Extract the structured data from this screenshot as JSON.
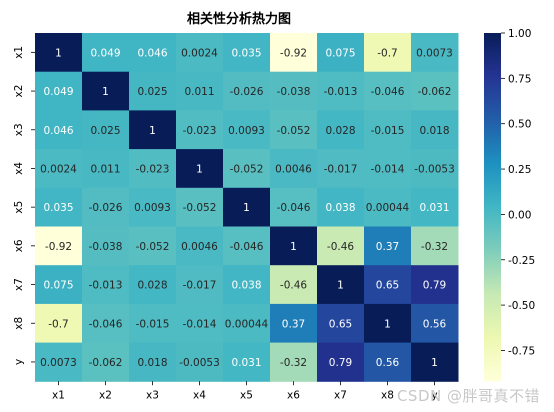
{
  "chart_data": {
    "type": "heatmap",
    "title": "相关性分析热力图",
    "categories": [
      "x1",
      "x2",
      "x3",
      "x4",
      "x5",
      "x6",
      "x7",
      "x8",
      "y"
    ],
    "matrix": [
      [
        1,
        0.049,
        0.046,
        0.0024,
        0.035,
        -0.92,
        0.075,
        -0.7,
        0.0073
      ],
      [
        0.049,
        1,
        0.025,
        0.011,
        -0.026,
        -0.038,
        -0.013,
        -0.046,
        -0.062
      ],
      [
        0.046,
        0.025,
        1,
        -0.023,
        0.0093,
        -0.052,
        0.028,
        -0.015,
        0.018
      ],
      [
        0.0024,
        0.011,
        -0.023,
        1,
        -0.052,
        0.0046,
        -0.017,
        -0.014,
        -0.0053
      ],
      [
        0.035,
        -0.026,
        0.0093,
        -0.052,
        1,
        -0.046,
        0.038,
        0.00044,
        0.031
      ],
      [
        -0.92,
        -0.038,
        -0.052,
        0.0046,
        -0.046,
        1,
        -0.46,
        0.37,
        -0.32
      ],
      [
        0.075,
        -0.013,
        0.028,
        -0.017,
        0.038,
        -0.46,
        1,
        0.65,
        0.79
      ],
      [
        -0.7,
        -0.046,
        -0.015,
        -0.014,
        0.00044,
        0.37,
        0.65,
        1,
        0.56
      ],
      [
        0.0073,
        -0.062,
        0.018,
        -0.0053,
        0.031,
        -0.32,
        0.79,
        0.56,
        1
      ]
    ],
    "labels": [
      [
        "1",
        "0.049",
        "0.046",
        "0.0024",
        "0.035",
        "-0.92",
        "0.075",
        "-0.7",
        "0.0073"
      ],
      [
        "0.049",
        "1",
        "0.025",
        "0.011",
        "-0.026",
        "-0.038",
        "-0.013",
        "-0.046",
        "-0.062"
      ],
      [
        "0.046",
        "0.025",
        "1",
        "-0.023",
        "0.0093",
        "-0.052",
        "0.028",
        "-0.015",
        "0.018"
      ],
      [
        "0.0024",
        "0.011",
        "-0.023",
        "1",
        "-0.052",
        "0.0046",
        "-0.017",
        "-0.014",
        "-0.0053"
      ],
      [
        "0.035",
        "-0.026",
        "0.0093",
        "-0.052",
        "1",
        "-0.046",
        "0.038",
        "0.00044",
        "0.031"
      ],
      [
        "-0.92",
        "-0.038",
        "-0.052",
        "0.0046",
        "-0.046",
        "1",
        "-0.46",
        "0.37",
        "-0.32"
      ],
      [
        "0.075",
        "-0.013",
        "0.028",
        "-0.017",
        "0.038",
        "-0.46",
        "1",
        "0.65",
        "0.79"
      ],
      [
        "-0.7",
        "-0.046",
        "-0.015",
        "-0.014",
        "0.00044",
        "0.37",
        "0.65",
        "1",
        "0.56"
      ],
      [
        "0.0073",
        "-0.062",
        "0.018",
        "-0.0053",
        "0.031",
        "-0.32",
        "0.79",
        "0.56",
        "1"
      ]
    ],
    "colorbar": {
      "range": [
        -0.92,
        1.0
      ],
      "ticks": [
        "1.00",
        "0.75",
        "0.50",
        "0.25",
        "0.00",
        "-0.25",
        "-0.50",
        "-0.75"
      ],
      "colormap": "YlGnBu"
    },
    "xlabel": "",
    "ylabel": ""
  },
  "watermark": "CSDN @胖哥真不错"
}
